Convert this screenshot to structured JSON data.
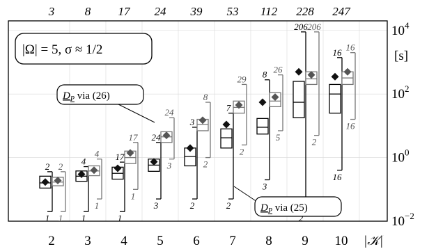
{
  "chart_data": {
    "type": "box",
    "top_axis_labels": [
      "3",
      "8",
      "17",
      "24",
      "39",
      "53",
      "112",
      "228",
      "247"
    ],
    "xlabel": "|𝒦|",
    "ylabel": "[s]",
    "y_scale": "log",
    "ylim": [
      0.01,
      20000
    ],
    "y_ticks": [
      {
        "base": "10",
        "exp": "4",
        "value": 10000
      },
      {
        "base": "10",
        "exp": "2",
        "value": 100
      },
      {
        "base": "10",
        "exp": "0",
        "value": 1
      },
      {
        "base": "10",
        "exp": "−2",
        "value": 0.01
      }
    ],
    "annotation": {
      "prefix": "|Ω| = 5, σ ≈ 1/2"
    },
    "callouts": [
      {
        "text_main": "D",
        "text_sub": "P",
        "text_rest": " via (26)"
      },
      {
        "text_main": "D",
        "text_sub": "P",
        "text_rest": " via (25)"
      }
    ],
    "categories": [
      "2",
      "3",
      "4",
      "5",
      "6",
      "7",
      "8",
      "9",
      "10"
    ],
    "series": [
      {
        "method": "(25)",
        "color": "#000000",
        "boxes": [
          {
            "whisker_low": 0.02,
            "q1": 0.11,
            "median": 0.16,
            "q3": 0.26,
            "whisker_high": 0.36,
            "marker": 0.17,
            "label_low": "1",
            "label_high": "2"
          },
          {
            "whisker_low": 0.02,
            "q1": 0.18,
            "median": 0.26,
            "q3": 0.38,
            "whisker_high": 0.52,
            "marker": 0.3,
            "label_low": "1",
            "label_high": "4"
          },
          {
            "whisker_low": 0.02,
            "q1": 0.21,
            "median": 0.32,
            "q3": 0.5,
            "whisker_high": 0.72,
            "marker": 0.46,
            "label_low": "1",
            "label_high": "17"
          },
          {
            "whisker_low": 0.05,
            "q1": 0.37,
            "median": 0.58,
            "q3": 0.9,
            "whisker_high": 3.0,
            "marker": 0.74,
            "label_low": "3",
            "label_high": "24"
          },
          {
            "whisker_low": 0.05,
            "q1": 0.55,
            "median": 1.1,
            "q3": 2.0,
            "whisker_high": 9.0,
            "marker": 2.0,
            "label_low": "2",
            "label_high": "3"
          },
          {
            "whisker_low": 0.05,
            "q1": 2.0,
            "median": 4.2,
            "q3": 8.0,
            "whisker_high": 25.0,
            "marker": 11.0,
            "label_low": "2",
            "label_high": "7"
          },
          {
            "whisker_low": 0.2,
            "q1": 5.5,
            "median": 9.0,
            "q3": 17.0,
            "whisker_high": 280.0,
            "marker": 55.0,
            "label_low": "3",
            "label_high": "8"
          },
          {
            "whisker_low": 0.02,
            "q1": 18.0,
            "median": 55.0,
            "q3": 250.0,
            "whisker_high": 9000.0,
            "marker": 500.0,
            "label_low": "2",
            "label_high": "206"
          },
          {
            "whisker_low": 0.4,
            "q1": 25.0,
            "median": 100.0,
            "q3": 200.0,
            "whisker_high": 1400.0,
            "marker": 350.0,
            "label_low": "16",
            "label_high": "16"
          }
        ]
      },
      {
        "method": "(26)",
        "color": "#777777",
        "boxes": [
          {
            "whisker_low": 0.02,
            "q1": 0.13,
            "median": 0.17,
            "q3": 0.24,
            "whisker_high": 0.36,
            "marker": 0.19,
            "label_low": "1",
            "label_high": "2"
          },
          {
            "whisker_low": 0.05,
            "q1": 0.27,
            "median": 0.38,
            "q3": 0.55,
            "whisker_high": 0.9,
            "marker": 0.4,
            "label_low": "1",
            "label_high": "4"
          },
          {
            "whisker_low": 0.1,
            "q1": 0.65,
            "median": 1.0,
            "q3": 1.6,
            "whisker_high": 3.0,
            "marker": 1.4,
            "label_low": "1",
            "label_high": "17"
          },
          {
            "whisker_low": 0.9,
            "q1": 3.0,
            "median": 4.5,
            "q3": 6.5,
            "whisker_high": 18.0,
            "marker": 5.0,
            "label_low": "3",
            "label_high": "24"
          },
          {
            "whisker_low": 1.0,
            "q1": 7.0,
            "median": 11.0,
            "q3": 16.0,
            "whisker_high": 55.0,
            "marker": 15.0,
            "label_low": "2",
            "label_high": "8"
          },
          {
            "whisker_low": 2.5,
            "q1": 25.0,
            "median": 38.0,
            "q3": 60.0,
            "whisker_high": 200.0,
            "marker": 45.0,
            "label_low": "2",
            "label_high": "29"
          },
          {
            "whisker_low": 7.0,
            "q1": 40.0,
            "median": 60.0,
            "q3": 110.0,
            "whisker_high": 400.0,
            "marker": 80.0,
            "label_low": "5",
            "label_high": "26"
          },
          {
            "whisker_low": 5.0,
            "q1": 200.0,
            "median": 300.0,
            "q3": 500.0,
            "whisker_high": 9000.0,
            "marker": 400.0,
            "label_low": "2",
            "label_high": "206"
          },
          {
            "whisker_low": 16.0,
            "q1": 200.0,
            "median": 320.0,
            "q3": 500.0,
            "whisker_high": 2000.0,
            "marker": 500.0,
            "label_low": "16",
            "label_high": "16"
          }
        ]
      }
    ]
  }
}
